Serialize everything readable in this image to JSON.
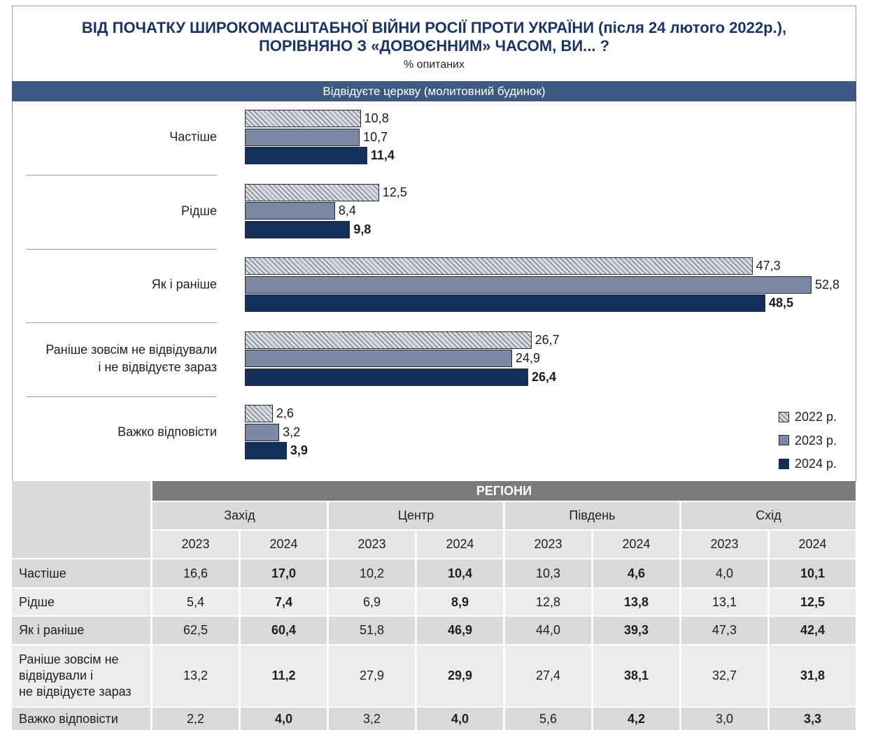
{
  "colors": {
    "title": "#1b3563",
    "panel_band": "#3d5a82",
    "table_header": "#7b7b7b",
    "row_dark": "#d9d9d9",
    "row_light": "#ececec",
    "year_row": "#e6e6e6"
  },
  "chart_data": [
    {
      "type": "bar",
      "orientation": "horizontal",
      "title": "ВІД ПОЧАТКУ ШИРОКОМАСШТАБНОЇ ВІЙНИ РОСІЇ ПРОТИ УКРАЇНИ (після 24 лютого 2022р.),\nПОРІВНЯНО З «ДОВОЄННИМ» ЧАСОМ, ВИ... ?",
      "subtitle": "% опитаних",
      "panel_title": "Відвідуєте церкву (молитовний будинок)",
      "categories": [
        "Частіше",
        "Рідше",
        "Як і раніше",
        "Раніше зовсім не відвідували\nі не відвідуєте зараз",
        "Важко відповісти"
      ],
      "series": [
        {
          "name": "2022 р.",
          "values": [
            10.8,
            12.5,
            47.3,
            26.7,
            2.6
          ],
          "color": "#d6d9e0",
          "pattern": "hatched",
          "hatch_color": "#656b79"
        },
        {
          "name": "2023 р.",
          "values": [
            10.7,
            8.4,
            52.8,
            24.9,
            3.2
          ],
          "color": "#7c88a4"
        },
        {
          "name": "2024 р.",
          "values": [
            11.4,
            9.8,
            48.5,
            26.4,
            3.9
          ],
          "color": "#132f5c"
        }
      ],
      "data_labels": true,
      "grid": false,
      "legend": "bottom-right"
    },
    {
      "type": "table",
      "header": "РЕГІОНИ",
      "column_groups": [
        {
          "name": "Захід",
          "columns": [
            "2023",
            "2024"
          ]
        },
        {
          "name": "Центр",
          "columns": [
            "2023",
            "2024"
          ]
        },
        {
          "name": "Південь",
          "columns": [
            "2023",
            "2024"
          ]
        },
        {
          "name": "Схід",
          "columns": [
            "2023",
            "2024"
          ]
        }
      ],
      "rows": [
        {
          "label": "Частіше",
          "values": [
            16.6,
            17.0,
            10.2,
            10.4,
            10.3,
            4.6,
            4.0,
            10.1
          ]
        },
        {
          "label": "Рідше",
          "values": [
            5.4,
            7.4,
            6.9,
            8.9,
            12.8,
            13.8,
            13.1,
            12.5
          ]
        },
        {
          "label": "Як і раніше",
          "values": [
            62.5,
            60.4,
            51.8,
            46.9,
            44.0,
            39.3,
            47.3,
            42.4
          ]
        },
        {
          "label": "Раніше зовсім не\nвідвідували і\nне відвідуєте зараз",
          "values": [
            13.2,
            11.2,
            27.9,
            29.9,
            27.4,
            38.1,
            32.7,
            31.8
          ]
        },
        {
          "label": "Важко відповісти",
          "values": [
            2.2,
            4.0,
            3.2,
            4.0,
            5.6,
            4.2,
            3.0,
            3.3
          ]
        }
      ]
    }
  ]
}
